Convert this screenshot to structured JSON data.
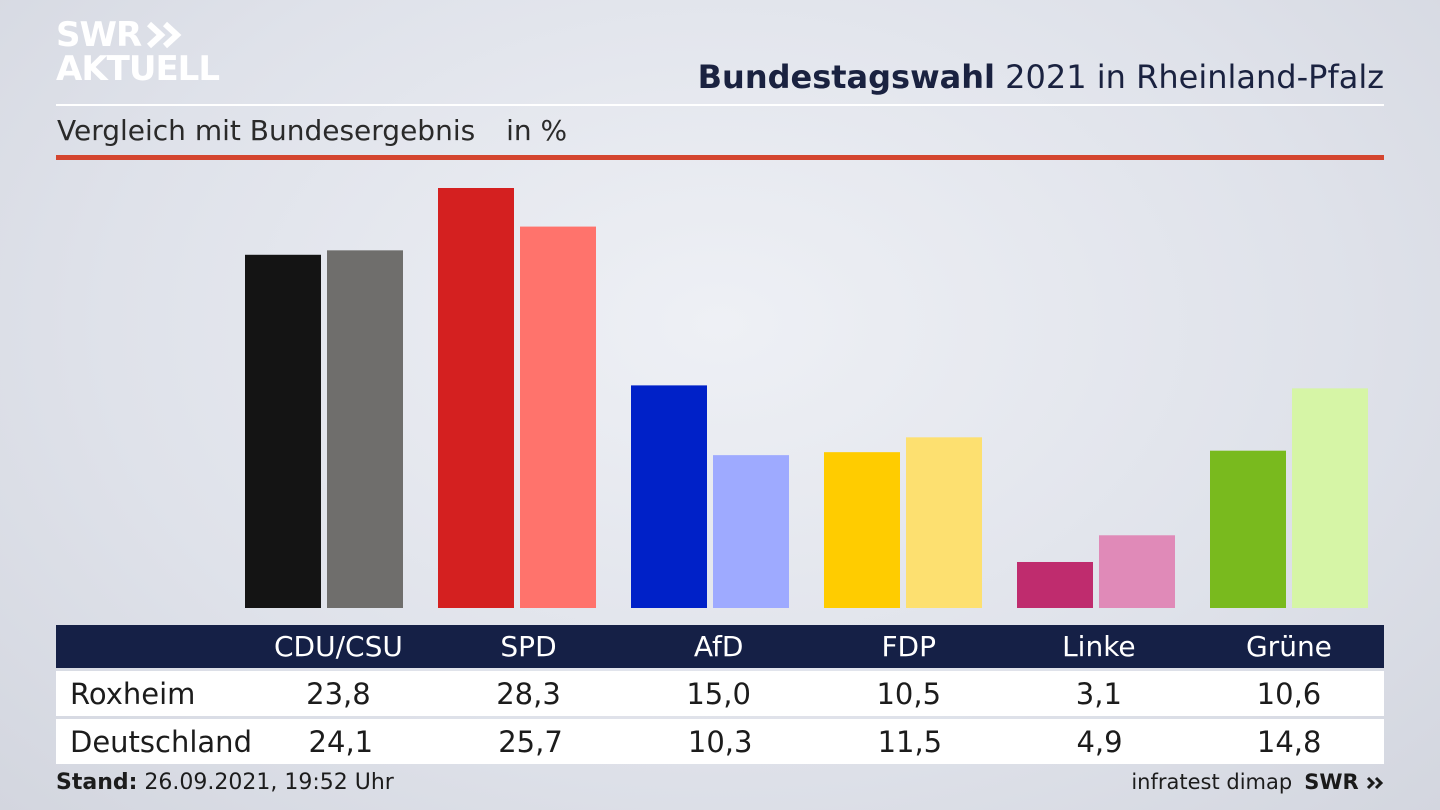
{
  "brand": {
    "line1": "SWR",
    "line2": "AKTUELL",
    "footer_logo": "SWR"
  },
  "header": {
    "title_bold": "Bundestagswahl",
    "title_rest": "2021 in Rheinland-Pfalz"
  },
  "subtitle": {
    "text": "Vergleich mit Bundesergebnis",
    "unit": "in %"
  },
  "footer": {
    "stand_label": "Stand:",
    "stand_value": "26.09.2021, 19:52 Uhr",
    "source": "infratest dimap"
  },
  "chart_data": {
    "type": "bar",
    "categories": [
      "CDU/CSU",
      "SPD",
      "AfD",
      "FDP",
      "Linke",
      "Grüne"
    ],
    "series": [
      {
        "name": "Roxheim",
        "values": [
          23.8,
          28.3,
          15.0,
          10.5,
          3.1,
          10.6
        ],
        "colors": [
          "#141414",
          "#d42020",
          "#0021c8",
          "#ffcc00",
          "#bf2c6e",
          "#79ba1e"
        ]
      },
      {
        "name": "Deutschland",
        "values": [
          24.1,
          25.7,
          10.3,
          11.5,
          4.9,
          14.8
        ],
        "colors": [
          "#6f6e6c",
          "#ff736c",
          "#9eaaff",
          "#fde070",
          "#e08ab8",
          "#d6f5a6"
        ]
      }
    ],
    "value_labels": [
      [
        "23,8",
        "28,3",
        "15,0",
        "10,5",
        "3,1",
        "10,6"
      ],
      [
        "24,1",
        "25,7",
        "10,3",
        "11,5",
        "4,9",
        "14,8"
      ]
    ],
    "ylim": [
      0,
      28.3
    ],
    "grid": false,
    "legend": "table below chart",
    "title": "Bundestagswahl 2021 in Rheinland-Pfalz",
    "subtitle": "Vergleich mit Bundesergebnis",
    "ylabel": "in %"
  }
}
